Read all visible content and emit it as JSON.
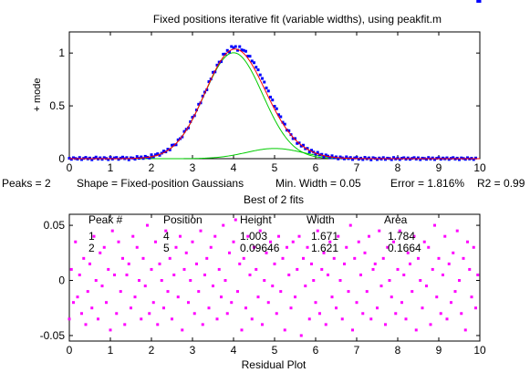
{
  "title": "Fixed positions iterative fit (variable widths), using peakfit.m",
  "status_line": {
    "peaks": "Peaks = 2",
    "shape": "Shape = Fixed-position Gaussians",
    "min_width": "Min. Width = 0.05",
    "error": "Error = 1.816%",
    "r2": "R2 = 0.99"
  },
  "subtitle": "Best of 2 fits",
  "residual_xlabel": "Residual Plot",
  "table": {
    "headers": [
      "Peak #",
      "Position",
      "Height",
      "Width",
      "Area"
    ],
    "rows": [
      [
        "1",
        "4",
        "1.003",
        "1.671",
        "1.784"
      ],
      [
        "2",
        "5",
        "0.09646",
        "1.621",
        "0.1664"
      ]
    ]
  },
  "colors": {
    "data_points": "#0000ff",
    "total_fit": "#ff0000",
    "components": "#00cc00",
    "residuals": "#ff00ff",
    "baseline": "#000000"
  },
  "chart_data": [
    {
      "type": "scatter",
      "name": "upper-fit-plot",
      "ylabel": "+ mode",
      "xlabel": "",
      "xlim": [
        0,
        10
      ],
      "ylim": [
        0,
        1.2
      ],
      "xticks": [
        0,
        1,
        2,
        3,
        4,
        5,
        6,
        7,
        8,
        9,
        10
      ],
      "yticks": [
        0,
        0.5,
        1
      ],
      "ytick_labels": [
        "0",
        "0.5",
        "1"
      ],
      "grid": false,
      "x_start": 0,
      "x_step": 0.05,
      "n_points": 201,
      "data_noise": [
        0.004,
        -0.006,
        0.009,
        0.002,
        -0.004,
        0.011,
        -0.008,
        0.003,
        0.012,
        -0.002,
        0.006,
        -0.01,
        0.004,
        0.015,
        -0.003,
        0.008,
        -0.006,
        0.01,
        0.002,
        -0.009,
        0.013,
        -0.004,
        0.007,
        0.011,
        -0.007,
        0.005,
        0.014,
        -0.001,
        0.009,
        -0.012,
        0.006,
        0.003,
        -0.008,
        0.016,
        -0.002,
        0.01,
        -0.006,
        0.012,
        0.001,
        -0.01,
        0.018,
        -0.005,
        0.009,
        0.013,
        -0.008,
        0.004,
        0.015,
        -0.003,
        0.011,
        -0.009,
        0.02,
        0.006,
        -0.012,
        0.014,
        0.002,
        -0.007,
        0.017,
        0.008,
        -0.011,
        0.013,
        0.019,
        -0.004,
        0.01,
        0.023,
        -0.006,
        0.015,
        0.009,
        -0.013,
        0.021,
        0.004,
        0.026,
        -0.009,
        0.018,
        0.012,
        -0.015,
        0.028,
        0.005,
        0.02,
        -0.01,
        0.031,
        0.014,
        0.024,
        -0.008,
        0.035,
        0.017,
        0.029,
        0.042,
        0.021,
        0.048,
        0.034,
        0.052,
        0.045,
        0.058,
        0.049,
        0.055,
        0.061,
        0.046,
        0.057,
        0.039,
        0.05,
        0.028,
        0.041,
        0.019,
        0.033,
        0.012,
        0.024,
        -0.005,
        0.016,
        0.003,
        -0.012,
        0.009,
        -0.018,
        0.004,
        -0.01,
        0.013,
        -0.007,
        0.008,
        -0.015,
        0.011,
        0.002,
        -0.009,
        0.014,
        -0.004,
        0.007,
        -0.012,
        0.01,
        0.003,
        -0.008,
        0.012,
        -0.005,
        0.006,
        -0.011,
        0.009,
        0.001,
        -0.007,
        0.013,
        -0.003,
        0.008,
        -0.01,
        0.005,
        0.011,
        -0.006,
        0.004,
        -0.009,
        0.012,
        -0.002,
        0.007,
        -0.011,
        0.009,
        0.003,
        -0.008,
        0.006,
        -0.004,
        0.01,
        -0.007,
        0.005,
        0.002,
        -0.009,
        0.011,
        -0.003,
        0.006,
        -0.008,
        0.004,
        0.009,
        -0.005,
        0.007,
        -0.006,
        0.003,
        0.01,
        -0.004,
        0.008,
        -0.009,
        0.005,
        0.002,
        -0.006,
        0.011,
        -0.003,
        0.007,
        -0.008,
        0.004,
        0.009,
        -0.005,
        0.006,
        -0.002,
        0.008,
        -0.007,
        0.003,
        0.01,
        -0.004,
        0.005,
        -0.009,
        0.007,
        0.002,
        -0.006,
        0.009,
        -0.003,
        0.004,
        -0.008,
        0.006
      ],
      "series": [
        {
          "name": "",
          "role": "data",
          "marker": "point"
        },
        {
          "name": "",
          "role": "total-fit",
          "line": "solid"
        },
        {
          "name": "",
          "role": "component",
          "peak": 1,
          "position": 4,
          "height": 1.003,
          "width": 1.671
        },
        {
          "name": "",
          "role": "component",
          "peak": 2,
          "position": 5,
          "height": 0.09646,
          "width": 1.621
        }
      ]
    },
    {
      "type": "scatter",
      "name": "residual-plot",
      "xlabel": "Residual Plot",
      "ylabel": "",
      "xlim": [
        0,
        10
      ],
      "ylim": [
        -0.055,
        0.06
      ],
      "xticks": [
        0,
        1,
        2,
        3,
        4,
        5,
        6,
        7,
        8,
        9,
        10
      ],
      "yticks": [
        0.05,
        0,
        -0.05
      ],
      "ytick_labels": [
        "0.05",
        "0",
        "-0.05"
      ],
      "grid": false,
      "x": [
        0,
        0.05,
        0.1,
        0.15,
        0.2,
        0.25,
        0.3,
        0.35,
        0.4,
        0.45,
        0.5,
        0.55,
        0.6,
        0.65,
        0.7,
        0.75,
        0.8,
        0.85,
        0.9,
        0.95,
        1,
        1.05,
        1.1,
        1.15,
        1.2,
        1.25,
        1.3,
        1.35,
        1.4,
        1.45,
        1.5,
        1.55,
        1.6,
        1.65,
        1.7,
        1.75,
        1.8,
        1.85,
        1.9,
        1.95,
        2,
        2.05,
        2.1,
        2.15,
        2.2,
        2.25,
        2.3,
        2.35,
        2.4,
        2.45,
        2.5,
        2.55,
        2.6,
        2.65,
        2.7,
        2.75,
        2.8,
        2.85,
        2.9,
        2.95,
        3,
        3.05,
        3.1,
        3.15,
        3.2,
        3.25,
        3.3,
        3.35,
        3.4,
        3.45,
        3.5,
        3.55,
        3.6,
        3.65,
        3.7,
        3.75,
        3.8,
        3.85,
        3.9,
        3.95,
        4,
        4.05,
        4.1,
        4.15,
        4.2,
        4.25,
        4.3,
        4.35,
        4.4,
        4.45,
        4.5,
        4.55,
        4.6,
        4.65,
        4.7,
        4.75,
        4.8,
        4.85,
        4.9,
        4.95,
        5,
        5.05,
        5.1,
        5.15,
        5.2,
        5.25,
        5.3,
        5.35,
        5.4,
        5.45,
        5.5,
        5.55,
        5.6,
        5.65,
        5.7,
        5.75,
        5.8,
        5.85,
        5.9,
        5.95,
        6,
        6.05,
        6.1,
        6.15,
        6.2,
        6.25,
        6.3,
        6.35,
        6.4,
        6.45,
        6.5,
        6.55,
        6.6,
        6.65,
        6.7,
        6.75,
        6.8,
        6.85,
        6.9,
        6.95,
        7,
        7.05,
        7.1,
        7.15,
        7.2,
        7.25,
        7.3,
        7.35,
        7.4,
        7.45,
        7.5,
        7.55,
        7.6,
        7.65,
        7.7,
        7.75,
        7.8,
        7.85,
        7.9,
        7.95,
        8,
        8.05,
        8.1,
        8.15,
        8.2,
        8.25,
        8.3,
        8.35,
        8.4,
        8.45,
        8.5,
        8.55,
        8.6,
        8.65,
        8.7,
        8.75,
        8.8,
        8.85,
        8.9,
        8.95,
        9,
        9.05,
        9.1,
        9.15,
        9.2,
        9.25,
        9.3,
        9.35,
        9.4,
        9.45,
        9.5,
        9.55,
        9.6,
        9.65,
        9.7,
        9.75,
        9.8,
        9.85,
        9.9,
        9.95
      ],
      "y": [
        -0.035,
        0.01,
        -0.02,
        0.035,
        -0.015,
        0.005,
        -0.03,
        0.02,
        -0.04,
        -0.01,
        0.015,
        -0.025,
        0.04,
        0.0,
        -0.035,
        0.025,
        -0.005,
        0.03,
        -0.02,
        0.01,
        -0.045,
        0.045,
        0.005,
        -0.03,
        0.035,
        -0.01,
        0.02,
        -0.04,
        0.005,
        0.015,
        -0.025,
        0.04,
        -0.015,
        0.03,
        0.0,
        -0.035,
        0.02,
        -0.005,
        0.05,
        -0.03,
        0.01,
        -0.02,
        0.035,
        -0.04,
        0.015,
        0.0,
        -0.025,
        0.045,
        -0.01,
        0.02,
        -0.035,
        0.005,
        0.03,
        -0.015,
        0.04,
        -0.045,
        0.01,
        0.025,
        -0.02,
        0.0,
        0.035,
        -0.03,
        0.015,
        -0.01,
        0.045,
        -0.04,
        0.005,
        0.02,
        -0.025,
        0.03,
        -0.005,
        0.04,
        -0.035,
        0.01,
        -0.015,
        0.05,
        0.0,
        -0.03,
        0.025,
        -0.02,
        0.035,
        0.055,
        -0.01,
        0.015,
        -0.045,
        0.02,
        -0.025,
        0.04,
        0.005,
        -0.035,
        0.03,
        0.01,
        -0.015,
        0.045,
        -0.04,
        0.0,
        0.025,
        -0.02,
        0.035,
        -0.005,
        0.015,
        -0.03,
        0.04,
        -0.01,
        0.02,
        -0.045,
        0.03,
        0.005,
        -0.025,
        0.035,
        -0.015,
        0.01,
        0.04,
        -0.05,
        0.02,
        -0.005,
        0.03,
        -0.035,
        0.015,
        0.0,
        -0.02,
        0.045,
        -0.03,
        0.01,
        0.025,
        -0.04,
        0.005,
        0.035,
        -0.015,
        0.02,
        -0.025,
        0.04,
        0.0,
        -0.035,
        0.015,
        0.03,
        -0.01,
        0.05,
        -0.045,
        0.02,
        -0.02,
        0.035,
        0.005,
        -0.03,
        0.025,
        -0.01,
        0.04,
        -0.035,
        0.01,
        0.015,
        -0.025,
        0.045,
        -0.005,
        0.02,
        -0.04,
        0.03,
        0.0,
        -0.015,
        0.035,
        -0.03,
        0.01,
        0.045,
        -0.02,
        0.005,
        -0.035,
        0.025,
        0.015,
        -0.01,
        0.04,
        -0.045,
        0.02,
        0.0,
        -0.025,
        0.035,
        -0.005,
        0.03,
        -0.04,
        0.01,
        0.05,
        -0.015,
        0.02,
        -0.03,
        0.005,
        0.04,
        -0.035,
        0.015,
        -0.02,
        0.025,
        -0.01,
        0.045,
        0.0,
        -0.03,
        0.02,
        -0.045,
        0.035,
        0.01,
        -0.015,
        0.03,
        -0.025,
        0.005
      ]
    }
  ]
}
